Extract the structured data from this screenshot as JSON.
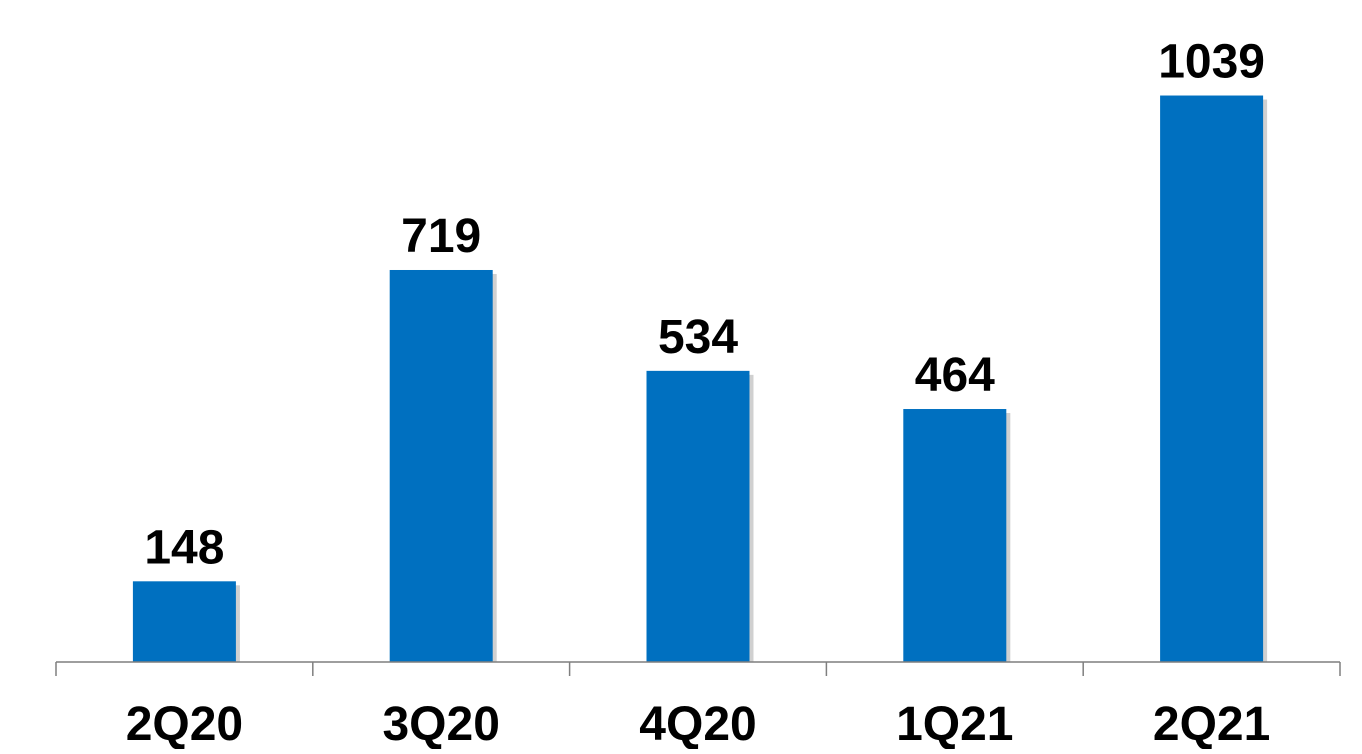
{
  "chart_data": {
    "type": "bar",
    "categories": [
      "2Q20",
      "3Q20",
      "4Q20",
      "1Q21",
      "2Q21"
    ],
    "values": [
      148,
      719,
      534,
      464,
      1039
    ],
    "title": "",
    "xlabel": "",
    "ylabel": "",
    "ylim": [
      0,
      1150
    ],
    "grid": false,
    "legend": "none",
    "data_labels": true,
    "colors": {
      "bar": "#0070C0",
      "axis": "#7f7f7f",
      "text": "#000000"
    }
  }
}
